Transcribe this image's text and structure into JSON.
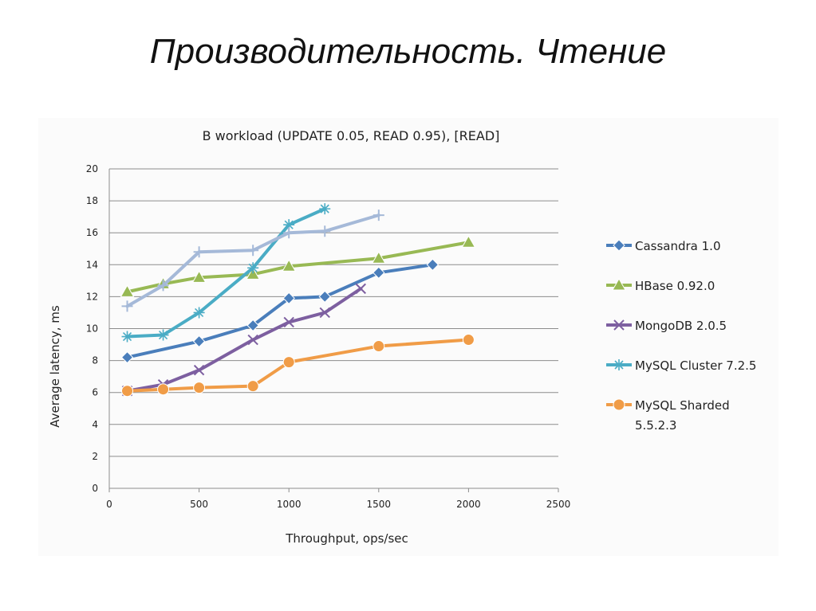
{
  "slide": {
    "title": "Производительность. Чтение"
  },
  "chart_data": {
    "type": "line",
    "title": "B workload (UPDATE 0.05, READ 0.95), [READ]",
    "xlabel": "Throughput, ops/sec",
    "ylabel": "Average latency, ms",
    "xlim": [
      0,
      2500
    ],
    "ylim": [
      0,
      20
    ],
    "xticks": [
      0,
      500,
      1000,
      1500,
      2000,
      2500
    ],
    "yticks": [
      0,
      2,
      4,
      6,
      8,
      10,
      12,
      14,
      16,
      18,
      20
    ],
    "grid": "horizontal",
    "legend_position": "right",
    "series": [
      {
        "name": "Cassandra 1.0",
        "color": "#4a7ebb",
        "marker": "diamond",
        "x": [
          100,
          500,
          800,
          1000,
          1200,
          1500,
          1800
        ],
        "y": [
          8.2,
          9.2,
          10.2,
          11.9,
          12.0,
          13.5,
          14.0
        ]
      },
      {
        "name": "HBase 0.92.0",
        "color": "#98b954",
        "marker": "triangle",
        "x": [
          100,
          300,
          500,
          800,
          1000,
          1500,
          2000
        ],
        "y": [
          12.3,
          12.8,
          13.2,
          13.4,
          13.9,
          14.4,
          15.4
        ]
      },
      {
        "name": "MongoDB 2.0.5",
        "color": "#7d5fa0",
        "marker": "x",
        "x": [
          100,
          300,
          500,
          800,
          1000,
          1200,
          1400
        ],
        "y": [
          6.1,
          6.5,
          7.4,
          9.3,
          10.4,
          11.0,
          12.5
        ]
      },
      {
        "name": "MySQL Cluster 7.2.5",
        "color": "#4aacc5",
        "marker": "star",
        "x": [
          100,
          300,
          500,
          800,
          1000,
          1200
        ],
        "y": [
          9.5,
          9.6,
          11.0,
          13.8,
          16.5,
          17.5
        ]
      },
      {
        "name": "",
        "color": "#a5b9d8",
        "marker": "plus",
        "x": [
          100,
          300,
          500,
          800,
          1000,
          1200,
          1500
        ],
        "y": [
          11.4,
          12.7,
          14.8,
          14.9,
          16.0,
          16.1,
          17.1
        ]
      },
      {
        "name": "MySQL Sharded 5.5.2.3",
        "legend_lines": [
          "MySQL Sharded",
          "5.5.2.3"
        ],
        "color": "#f09c47",
        "marker": "circle",
        "x": [
          100,
          300,
          500,
          800,
          1000,
          1500,
          2000
        ],
        "y": [
          6.1,
          6.2,
          6.3,
          6.4,
          7.9,
          8.9,
          9.3
        ]
      }
    ]
  }
}
